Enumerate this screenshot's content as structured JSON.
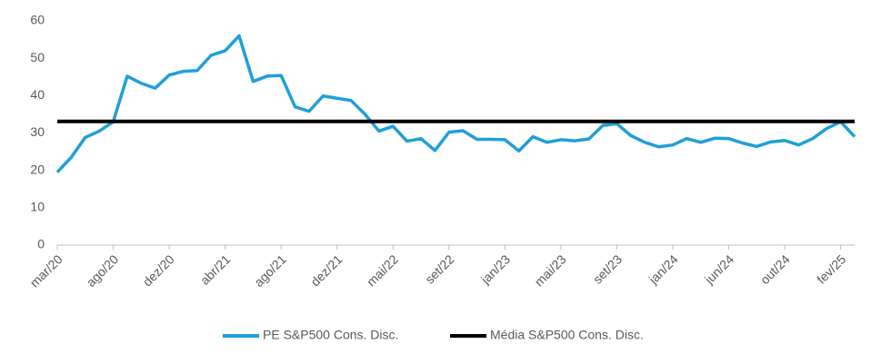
{
  "chart_data": {
    "type": "line",
    "categories": [
      "mar/20",
      null,
      null,
      null,
      "ago/20",
      null,
      null,
      null,
      "dez/20",
      null,
      null,
      null,
      "abr/21",
      null,
      null,
      null,
      "ago/21",
      null,
      null,
      null,
      "dez/21",
      null,
      null,
      null,
      "mai/22",
      null,
      null,
      null,
      "set/22",
      null,
      null,
      null,
      "jan/23",
      null,
      null,
      null,
      "mai/23",
      null,
      null,
      null,
      "set/23",
      null,
      null,
      null,
      "jan/24",
      null,
      null,
      null,
      "jun/24",
      null,
      null,
      null,
      "out/24",
      null,
      null,
      null,
      "fev/25",
      null
    ],
    "series": [
      {
        "name": "PE S&P500 Cons. Disc.",
        "color": "#1f9fd9",
        "values": [
          19.5,
          23.5,
          28.8,
          30.5,
          33,
          45.2,
          43.3,
          42,
          45.5,
          46.5,
          46.7,
          50.8,
          52,
          56,
          43.8,
          45.2,
          45.4,
          37,
          35.8,
          39.9,
          39.3,
          38.7,
          35,
          30.5,
          31.8,
          27.8,
          28.5,
          25.3,
          30.2,
          30.6,
          28.3,
          28.3,
          28.2,
          25.2,
          29,
          27.5,
          28.2,
          27.9,
          28.4,
          32,
          32.5,
          29.3,
          27.5,
          26.3,
          26.8,
          28.5,
          27.5,
          28.6,
          28.5,
          27.3,
          26.4,
          27.6,
          28,
          26.8,
          28.5,
          31.2,
          33,
          29
        ]
      },
      {
        "name": "Média  S&P500 Cons. Disc.",
        "color": "#000000",
        "values": [
          33.1,
          33.1,
          33.1,
          33.1,
          33.1,
          33.1,
          33.1,
          33.1,
          33.1,
          33.1,
          33.1,
          33.1,
          33.1,
          33.1,
          33.1,
          33.1,
          33.1,
          33.1,
          33.1,
          33.1,
          33.1,
          33.1,
          33.1,
          33.1,
          33.1,
          33.1,
          33.1,
          33.1,
          33.1,
          33.1,
          33.1,
          33.1,
          33.1,
          33.1,
          33.1,
          33.1,
          33.1,
          33.1,
          33.1,
          33.1,
          33.1,
          33.1,
          33.1,
          33.1,
          33.1,
          33.1,
          33.1,
          33.1,
          33.1,
          33.1,
          33.1,
          33.1,
          33.1,
          33.1,
          33.1,
          33.1,
          33.1,
          33.1
        ]
      }
    ],
    "ylim": [
      0,
      60
    ],
    "yticks": [
      0,
      10,
      20,
      30,
      40,
      50,
      60
    ],
    "grid": false,
    "legend": "bottom"
  }
}
